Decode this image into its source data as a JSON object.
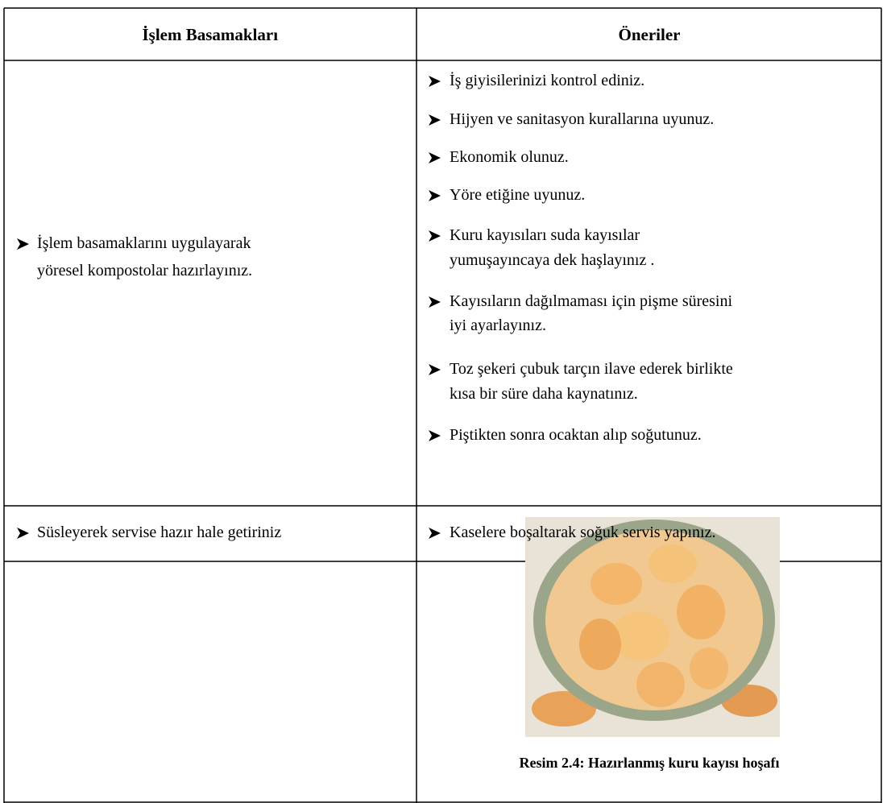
{
  "table": {
    "header": [
      "İşlem Basamakları",
      "Öneriler"
    ],
    "rows": [
      {
        "step": [
          "İşlem basamaklarını uygulayarak",
          "yöresel kompostolar hazırlayınız."
        ],
        "suggestions": [
          [
            "İş giyisilerinizi kontrol ediniz."
          ],
          [
            "Hijyen ve sanitasyon kurallarına uyunuz."
          ],
          [
            "Ekonomik olunuz."
          ],
          [
            "Yöre etiğine uyunuz."
          ],
          [
            "Kuru kayısıları suda kayısılar",
            "yumuşayıncaya dek haşlayınız ."
          ],
          [
            "Kayısıların dağılmaması için pişme süresini",
            "iyi ayarlayınız."
          ],
          [
            "Toz şekeri çubuk tarçın ilave ederek birlikte",
            "kısa bir süre daha kaynatınız."
          ],
          [
            "Piştikten sonra ocaktan alıp soğutunuz."
          ]
        ]
      },
      {
        "step": [
          "Süsleyerek servise hazır hale getiriniz"
        ],
        "suggestions": [
          [
            "Kaselere boşaltarak soğuk servis yapınız."
          ]
        ]
      }
    ],
    "caption": "Resim 2.4: Hazırlanmış kuru kayısı hoşafı"
  }
}
